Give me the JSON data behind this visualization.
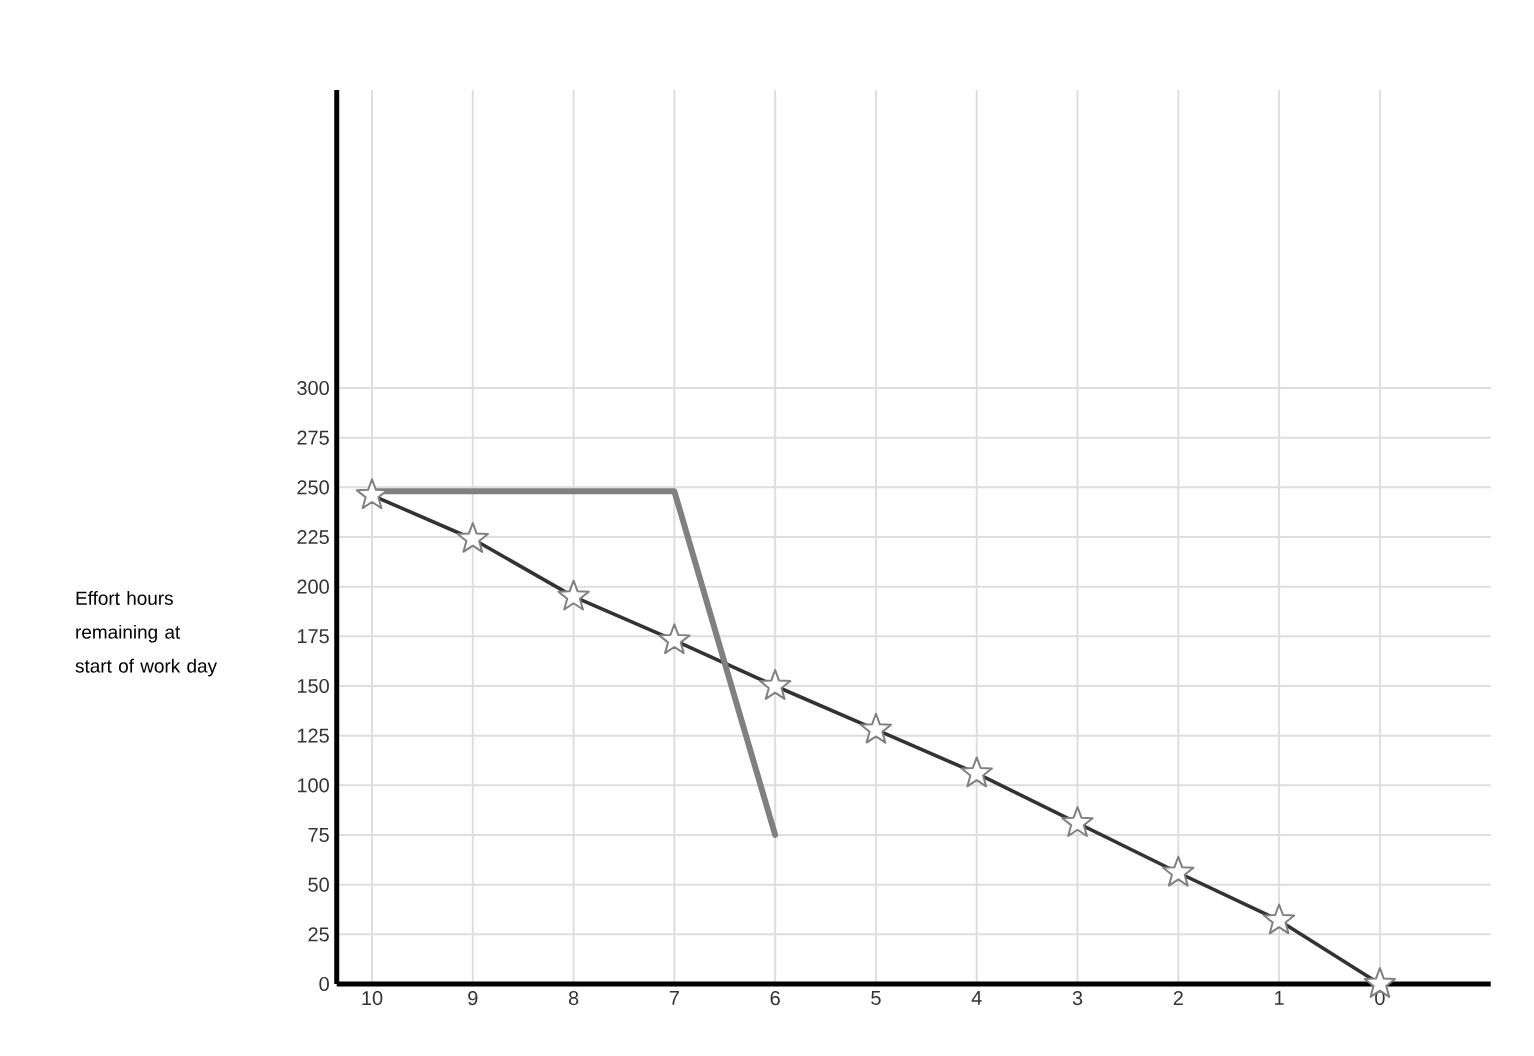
{
  "chart_data": {
    "type": "line",
    "annotations": [
      "Effort hours remaining at start of work day"
    ],
    "categories": [
      "10",
      "9",
      "8",
      "7",
      "6",
      "5",
      "4",
      "3",
      "2",
      "1",
      "0"
    ],
    "series": [
      {
        "color": "#333333",
        "marker": "star",
        "values": [
          246,
          224,
          195,
          173,
          150,
          128,
          106,
          81,
          56,
          32,
          0
        ]
      },
      {
        "color": "#808080",
        "marker": "none",
        "values": [
          248,
          248,
          248,
          248,
          75,
          null,
          null,
          null,
          null,
          null,
          null
        ]
      }
    ],
    "ylim": [
      0,
      450
    ],
    "yticks": [
      0,
      25,
      50,
      75,
      100,
      125,
      150,
      175,
      200,
      225,
      250,
      275,
      300
    ],
    "grid": true
  }
}
